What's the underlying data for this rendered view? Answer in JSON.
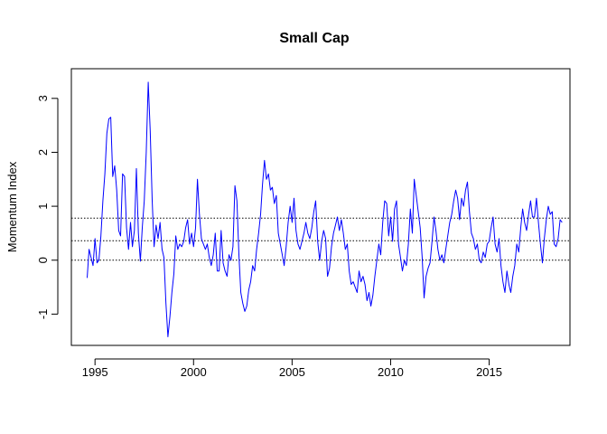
{
  "chart_data": {
    "type": "line",
    "title": "Small Cap",
    "xlabel": "",
    "ylabel": "Momentum Index",
    "xlim": [
      1993.8,
      2019.1
    ],
    "ylim": [
      -1.58,
      3.55
    ],
    "x_ticks": [
      {
        "value": 1995,
        "label": "1995"
      },
      {
        "value": 2000,
        "label": "2000"
      },
      {
        "value": 2005,
        "label": "2005"
      },
      {
        "value": 2010,
        "label": "2010"
      },
      {
        "value": 2015,
        "label": "2015"
      }
    ],
    "y_ticks": [
      {
        "value": -1,
        "label": "-1"
      },
      {
        "value": 0,
        "label": "0"
      },
      {
        "value": 1,
        "label": "1"
      },
      {
        "value": 2,
        "label": "2"
      },
      {
        "value": 3,
        "label": "3"
      }
    ],
    "reference_lines": [
      0,
      0.36,
      0.78
    ],
    "series": [
      {
        "color": "#0000ff",
        "points": [
          [
            1994.6,
            -0.33
          ],
          [
            1994.7,
            0.2
          ],
          [
            1994.8,
            0.05
          ],
          [
            1994.9,
            -0.1
          ],
          [
            1995.0,
            0.4
          ],
          [
            1995.1,
            -0.05
          ],
          [
            1995.2,
            0.0
          ],
          [
            1995.3,
            0.45
          ],
          [
            1995.4,
            1.1
          ],
          [
            1995.5,
            1.6
          ],
          [
            1995.6,
            2.35
          ],
          [
            1995.7,
            2.62
          ],
          [
            1995.8,
            2.65
          ],
          [
            1995.9,
            1.55
          ],
          [
            1996.0,
            1.75
          ],
          [
            1996.1,
            1.3
          ],
          [
            1996.2,
            0.55
          ],
          [
            1996.3,
            0.45
          ],
          [
            1996.4,
            1.6
          ],
          [
            1996.5,
            1.55
          ],
          [
            1996.6,
            0.6
          ],
          [
            1996.7,
            0.2
          ],
          [
            1996.8,
            0.7
          ],
          [
            1996.9,
            0.25
          ],
          [
            1997.0,
            0.55
          ],
          [
            1997.1,
            1.7
          ],
          [
            1997.2,
            0.5
          ],
          [
            1997.3,
            -0.02
          ],
          [
            1997.4,
            0.6
          ],
          [
            1997.5,
            1.1
          ],
          [
            1997.6,
            2.0
          ],
          [
            1997.7,
            3.3
          ],
          [
            1997.8,
            2.4
          ],
          [
            1997.9,
            1.1
          ],
          [
            1998.0,
            0.25
          ],
          [
            1998.1,
            0.65
          ],
          [
            1998.2,
            0.4
          ],
          [
            1998.3,
            0.7
          ],
          [
            1998.4,
            0.2
          ],
          [
            1998.5,
            0.05
          ],
          [
            1998.6,
            -0.8
          ],
          [
            1998.7,
            -1.42
          ],
          [
            1998.8,
            -1.05
          ],
          [
            1998.9,
            -0.6
          ],
          [
            1999.0,
            -0.25
          ],
          [
            1999.1,
            0.45
          ],
          [
            1999.2,
            0.2
          ],
          [
            1999.3,
            0.3
          ],
          [
            1999.4,
            0.25
          ],
          [
            1999.5,
            0.35
          ],
          [
            1999.6,
            0.6
          ],
          [
            1999.7,
            0.75
          ],
          [
            1999.8,
            0.3
          ],
          [
            1999.9,
            0.5
          ],
          [
            2000.0,
            0.25
          ],
          [
            2000.1,
            0.6
          ],
          [
            2000.2,
            1.5
          ],
          [
            2000.3,
            0.85
          ],
          [
            2000.4,
            0.4
          ],
          [
            2000.5,
            0.3
          ],
          [
            2000.6,
            0.2
          ],
          [
            2000.7,
            0.3
          ],
          [
            2000.8,
            0.05
          ],
          [
            2000.9,
            -0.1
          ],
          [
            2001.0,
            0.1
          ],
          [
            2001.1,
            0.5
          ],
          [
            2001.2,
            -0.2
          ],
          [
            2001.3,
            -0.2
          ],
          [
            2001.4,
            0.55
          ],
          [
            2001.5,
            -0.05
          ],
          [
            2001.6,
            -0.2
          ],
          [
            2001.7,
            -0.3
          ],
          [
            2001.8,
            0.1
          ],
          [
            2001.9,
            0.0
          ],
          [
            2002.0,
            0.25
          ],
          [
            2002.1,
            1.38
          ],
          [
            2002.2,
            1.1
          ],
          [
            2002.3,
            0.1
          ],
          [
            2002.4,
            -0.6
          ],
          [
            2002.5,
            -0.8
          ],
          [
            2002.6,
            -0.95
          ],
          [
            2002.7,
            -0.85
          ],
          [
            2002.8,
            -0.55
          ],
          [
            2002.9,
            -0.4
          ],
          [
            2003.0,
            -0.1
          ],
          [
            2003.1,
            -0.2
          ],
          [
            2003.2,
            0.2
          ],
          [
            2003.3,
            0.5
          ],
          [
            2003.4,
            0.85
          ],
          [
            2003.5,
            1.4
          ],
          [
            2003.6,
            1.85
          ],
          [
            2003.7,
            1.5
          ],
          [
            2003.8,
            1.6
          ],
          [
            2003.9,
            1.3
          ],
          [
            2004.0,
            1.35
          ],
          [
            2004.1,
            1.05
          ],
          [
            2004.2,
            1.2
          ],
          [
            2004.3,
            0.5
          ],
          [
            2004.4,
            0.3
          ],
          [
            2004.5,
            0.1
          ],
          [
            2004.6,
            -0.1
          ],
          [
            2004.7,
            0.25
          ],
          [
            2004.8,
            0.7
          ],
          [
            2004.9,
            1.0
          ],
          [
            2005.0,
            0.7
          ],
          [
            2005.1,
            1.15
          ],
          [
            2005.2,
            0.55
          ],
          [
            2005.3,
            0.3
          ],
          [
            2005.4,
            0.2
          ],
          [
            2005.5,
            0.35
          ],
          [
            2005.6,
            0.5
          ],
          [
            2005.7,
            0.7
          ],
          [
            2005.8,
            0.5
          ],
          [
            2005.9,
            0.4
          ],
          [
            2006.0,
            0.6
          ],
          [
            2006.1,
            0.9
          ],
          [
            2006.2,
            1.1
          ],
          [
            2006.3,
            0.35
          ],
          [
            2006.4,
            0.0
          ],
          [
            2006.5,
            0.35
          ],
          [
            2006.6,
            0.55
          ],
          [
            2006.7,
            0.4
          ],
          [
            2006.8,
            -0.3
          ],
          [
            2006.9,
            -0.15
          ],
          [
            2007.0,
            0.25
          ],
          [
            2007.1,
            0.5
          ],
          [
            2007.2,
            0.65
          ],
          [
            2007.3,
            0.8
          ],
          [
            2007.4,
            0.55
          ],
          [
            2007.5,
            0.75
          ],
          [
            2007.6,
            0.5
          ],
          [
            2007.7,
            0.2
          ],
          [
            2007.8,
            0.3
          ],
          [
            2007.9,
            -0.2
          ],
          [
            2008.0,
            -0.45
          ],
          [
            2008.1,
            -0.4
          ],
          [
            2008.2,
            -0.5
          ],
          [
            2008.3,
            -0.6
          ],
          [
            2008.4,
            -0.2
          ],
          [
            2008.5,
            -0.4
          ],
          [
            2008.6,
            -0.3
          ],
          [
            2008.7,
            -0.45
          ],
          [
            2008.8,
            -0.75
          ],
          [
            2008.9,
            -0.6
          ],
          [
            2009.0,
            -0.85
          ],
          [
            2009.1,
            -0.65
          ],
          [
            2009.2,
            -0.3
          ],
          [
            2009.3,
            0.0
          ],
          [
            2009.4,
            0.3
          ],
          [
            2009.5,
            0.1
          ],
          [
            2009.6,
            0.7
          ],
          [
            2009.7,
            1.1
          ],
          [
            2009.8,
            1.05
          ],
          [
            2009.9,
            0.45
          ],
          [
            2010.0,
            0.8
          ],
          [
            2010.1,
            0.35
          ],
          [
            2010.2,
            0.95
          ],
          [
            2010.3,
            1.1
          ],
          [
            2010.4,
            0.3
          ],
          [
            2010.5,
            0.05
          ],
          [
            2010.6,
            -0.2
          ],
          [
            2010.7,
            0.0
          ],
          [
            2010.8,
            -0.1
          ],
          [
            2010.9,
            0.3
          ],
          [
            2011.0,
            0.95
          ],
          [
            2011.1,
            0.5
          ],
          [
            2011.2,
            1.5
          ],
          [
            2011.3,
            1.2
          ],
          [
            2011.4,
            0.9
          ],
          [
            2011.5,
            0.6
          ],
          [
            2011.6,
            0.05
          ],
          [
            2011.7,
            -0.7
          ],
          [
            2011.8,
            -0.3
          ],
          [
            2011.9,
            -0.15
          ],
          [
            2012.0,
            -0.05
          ],
          [
            2012.1,
            0.35
          ],
          [
            2012.2,
            0.8
          ],
          [
            2012.3,
            0.55
          ],
          [
            2012.4,
            0.2
          ],
          [
            2012.5,
            0.0
          ],
          [
            2012.6,
            0.1
          ],
          [
            2012.7,
            -0.05
          ],
          [
            2012.8,
            0.2
          ],
          [
            2012.9,
            0.45
          ],
          [
            2013.0,
            0.7
          ],
          [
            2013.1,
            0.85
          ],
          [
            2013.2,
            1.1
          ],
          [
            2013.3,
            1.3
          ],
          [
            2013.4,
            1.15
          ],
          [
            2013.5,
            0.75
          ],
          [
            2013.6,
            1.15
          ],
          [
            2013.7,
            1.0
          ],
          [
            2013.8,
            1.3
          ],
          [
            2013.9,
            1.45
          ],
          [
            2014.0,
            0.9
          ],
          [
            2014.1,
            0.5
          ],
          [
            2014.2,
            0.4
          ],
          [
            2014.3,
            0.2
          ],
          [
            2014.4,
            0.3
          ],
          [
            2014.5,
            0.0
          ],
          [
            2014.6,
            -0.05
          ],
          [
            2014.7,
            0.15
          ],
          [
            2014.8,
            0.05
          ],
          [
            2014.9,
            0.3
          ],
          [
            2015.0,
            0.35
          ],
          [
            2015.1,
            0.6
          ],
          [
            2015.2,
            0.8
          ],
          [
            2015.3,
            0.3
          ],
          [
            2015.4,
            0.15
          ],
          [
            2015.5,
            0.4
          ],
          [
            2015.6,
            -0.1
          ],
          [
            2015.7,
            -0.4
          ],
          [
            2015.8,
            -0.6
          ],
          [
            2015.9,
            -0.2
          ],
          [
            2016.0,
            -0.45
          ],
          [
            2016.1,
            -0.6
          ],
          [
            2016.2,
            -0.3
          ],
          [
            2016.3,
            -0.1
          ],
          [
            2016.4,
            0.3
          ],
          [
            2016.5,
            0.15
          ],
          [
            2016.6,
            0.6
          ],
          [
            2016.7,
            0.95
          ],
          [
            2016.8,
            0.7
          ],
          [
            2016.9,
            0.55
          ],
          [
            2017.0,
            0.85
          ],
          [
            2017.1,
            1.1
          ],
          [
            2017.2,
            0.8
          ],
          [
            2017.3,
            0.8
          ],
          [
            2017.4,
            1.15
          ],
          [
            2017.5,
            0.7
          ],
          [
            2017.6,
            0.3
          ],
          [
            2017.7,
            -0.05
          ],
          [
            2017.8,
            0.4
          ],
          [
            2017.9,
            0.75
          ],
          [
            2018.0,
            1.0
          ],
          [
            2018.1,
            0.85
          ],
          [
            2018.2,
            0.9
          ],
          [
            2018.3,
            0.3
          ],
          [
            2018.4,
            0.25
          ],
          [
            2018.5,
            0.4
          ],
          [
            2018.6,
            0.75
          ],
          [
            2018.7,
            0.7
          ]
        ]
      }
    ],
    "grid": false,
    "legend": "none"
  }
}
